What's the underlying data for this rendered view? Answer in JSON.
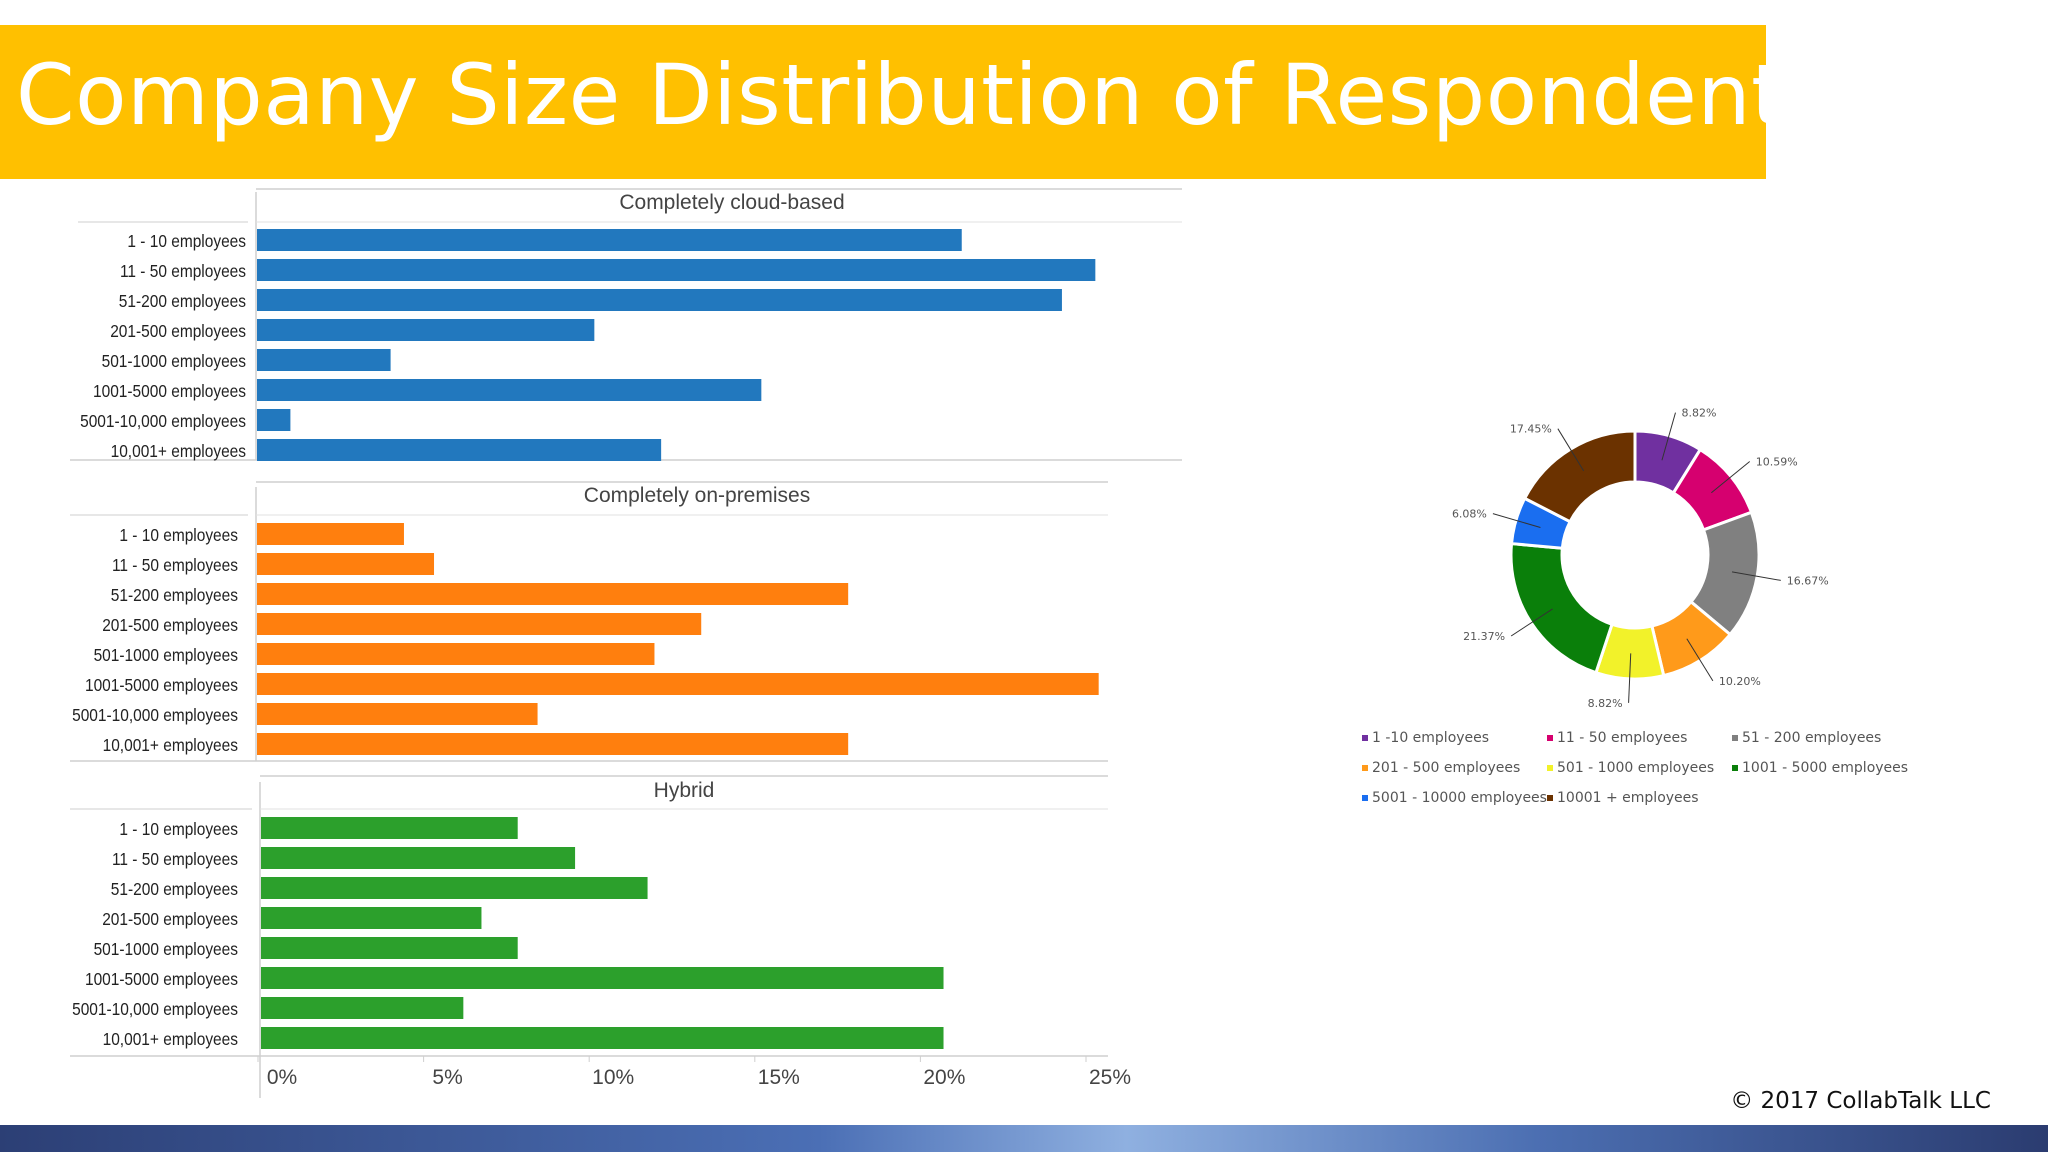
{
  "page": {
    "title": "Company Size Distribution of Respondents",
    "copyright": "© 2017 CollabTalk LLC"
  },
  "chart_data": [
    {
      "type": "bar",
      "orientation": "horizontal",
      "title": "Completely cloud-based",
      "categories": [
        "1 - 10 employees",
        "11 - 50 employees",
        "51-200 employees",
        "201-500 employees",
        "501-1000 employees",
        "1001-5000 employees",
        "5001-10,000 employees",
        "10,001+ employees"
      ],
      "values": [
        21.1,
        25.1,
        24.1,
        10.1,
        4.0,
        15.1,
        1.0,
        12.1
      ],
      "color": "#2278BE",
      "xlim": [
        0,
        25
      ],
      "xticks": [
        "0%",
        "5%",
        "10%",
        "15%",
        "20%",
        "25%"
      ]
    },
    {
      "type": "bar",
      "orientation": "horizontal",
      "title": "Completely on-premises",
      "categories": [
        "1 - 10 employees",
        "11 - 50 employees",
        "51-200 employees",
        "201-500 employees",
        "501-1000 employees",
        "1001-5000 employees",
        "5001-10,000 employees",
        "10,001+ employees"
      ],
      "values": [
        4.4,
        5.3,
        17.7,
        13.3,
        11.9,
        25.2,
        8.4,
        17.7
      ],
      "color": "#FF7F0E",
      "xlim": [
        0,
        25
      ]
    },
    {
      "type": "bar",
      "orientation": "horizontal",
      "title": "Hybrid",
      "categories": [
        "1 - 10 employees",
        "11 - 50 employees",
        "51-200 employees",
        "201-500 employees",
        "501-1000 employees",
        "1001-5000 employees",
        "5001-10,000 employees",
        "10,001+ employees"
      ],
      "values": [
        8.5,
        10.4,
        12.8,
        7.3,
        8.5,
        22.6,
        6.7,
        22.6
      ],
      "color": "#2CA02C",
      "xlim": [
        0,
        25
      ],
      "xticks": [
        "0%",
        "5%",
        "10%",
        "15%",
        "20%",
        "25%"
      ]
    },
    {
      "type": "pie",
      "donut": true,
      "categories": [
        "1 -10 employees",
        "11 - 50 employees",
        "51 - 200 employees",
        "201 - 500 employees",
        "501 - 1000 employees",
        "1001 - 5000 employees",
        "5001 - 10000 employees",
        "10001 + employees"
      ],
      "values": [
        8.82,
        10.59,
        16.67,
        10.2,
        8.82,
        21.37,
        6.08,
        17.45
      ],
      "labels": [
        "8.82%",
        "10.59%",
        "16.67%",
        "10.20%",
        "8.82%",
        "21.37%",
        "6.08%",
        "17.45%"
      ],
      "colors": [
        "#7030A0",
        "#D6006F",
        "#808080",
        "#FF9A1A",
        "#F2F22A",
        "#0A7F0A",
        "#1A6EF0",
        "#6B3200"
      ],
      "legend_placement": "bottom"
    }
  ]
}
